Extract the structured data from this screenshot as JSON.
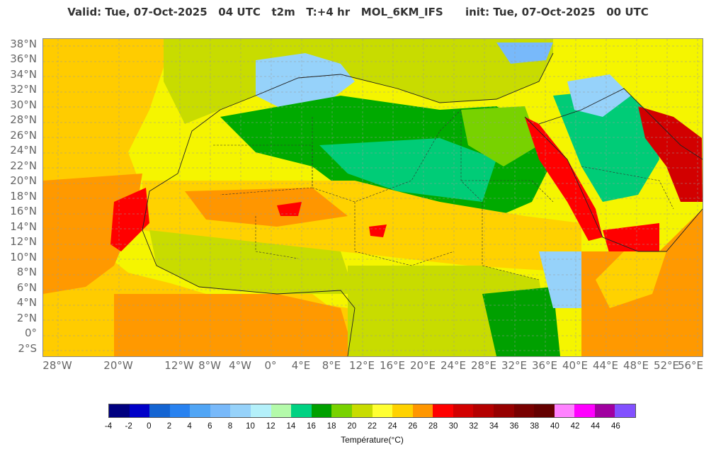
{
  "header": {
    "title": "Valid: Tue, 07-Oct-2025   04 UTC   t2m   T:+4 hr   MOL_6KM_IFS      init: Tue, 07-Oct-2025   00 UTC"
  },
  "map": {
    "variable": "t2m",
    "model": "MOL_6KM_IFS",
    "region": "North Africa and Arabian Peninsula",
    "lat_labels": [
      "38°N",
      "36°N",
      "34°N",
      "32°N",
      "30°N",
      "28°N",
      "26°N",
      "24°N",
      "22°N",
      "20°N",
      "18°N",
      "16°N",
      "14°N",
      "12°N",
      "10°N",
      "8°N",
      "6°N",
      "4°N",
      "2°N",
      "0°",
      "2°S"
    ],
    "lon_labels": [
      "28°W",
      "20°W",
      "12°W",
      "8°W",
      "4°W",
      "0°",
      "4°E",
      "8°E",
      "12°E",
      "16°E",
      "20°E",
      "24°E",
      "28°E",
      "32°E",
      "36°E",
      "40°E",
      "44°E",
      "48°E",
      "52°E",
      "56°E"
    ],
    "colors": {
      "ocean_warm": "#ffcc00",
      "ocean_hot": "#ff9900",
      "land_mild": "#ffff33",
      "land_green": "#00aa00",
      "land_teal": "#00cc77",
      "hot_spot": "#ff0000",
      "cool_blue": "#99ccff"
    }
  },
  "colorbar": {
    "ticks": [
      "-4",
      "-2",
      "0",
      "2",
      "4",
      "6",
      "8",
      "10",
      "12",
      "14",
      "16",
      "18",
      "20",
      "22",
      "24",
      "26",
      "28",
      "30",
      "32",
      "34",
      "36",
      "38",
      "40",
      "42",
      "44",
      "46"
    ],
    "colors": [
      "#000080",
      "#0000c8",
      "#1464d2",
      "#2882f0",
      "#50a5f5",
      "#78b9fa",
      "#96d2fa",
      "#b4f0fa",
      "#b4faaa",
      "#00d282",
      "#00a000",
      "#78d200",
      "#c8dc00",
      "#ffff32",
      "#ffd200",
      "#ff9600",
      "#ff0000",
      "#d20000",
      "#b40000",
      "#960000",
      "#780000",
      "#640000",
      "#ff82ff",
      "#ff00ff",
      "#a000a0",
      "#8250ff"
    ],
    "label": "Température(°C)"
  }
}
